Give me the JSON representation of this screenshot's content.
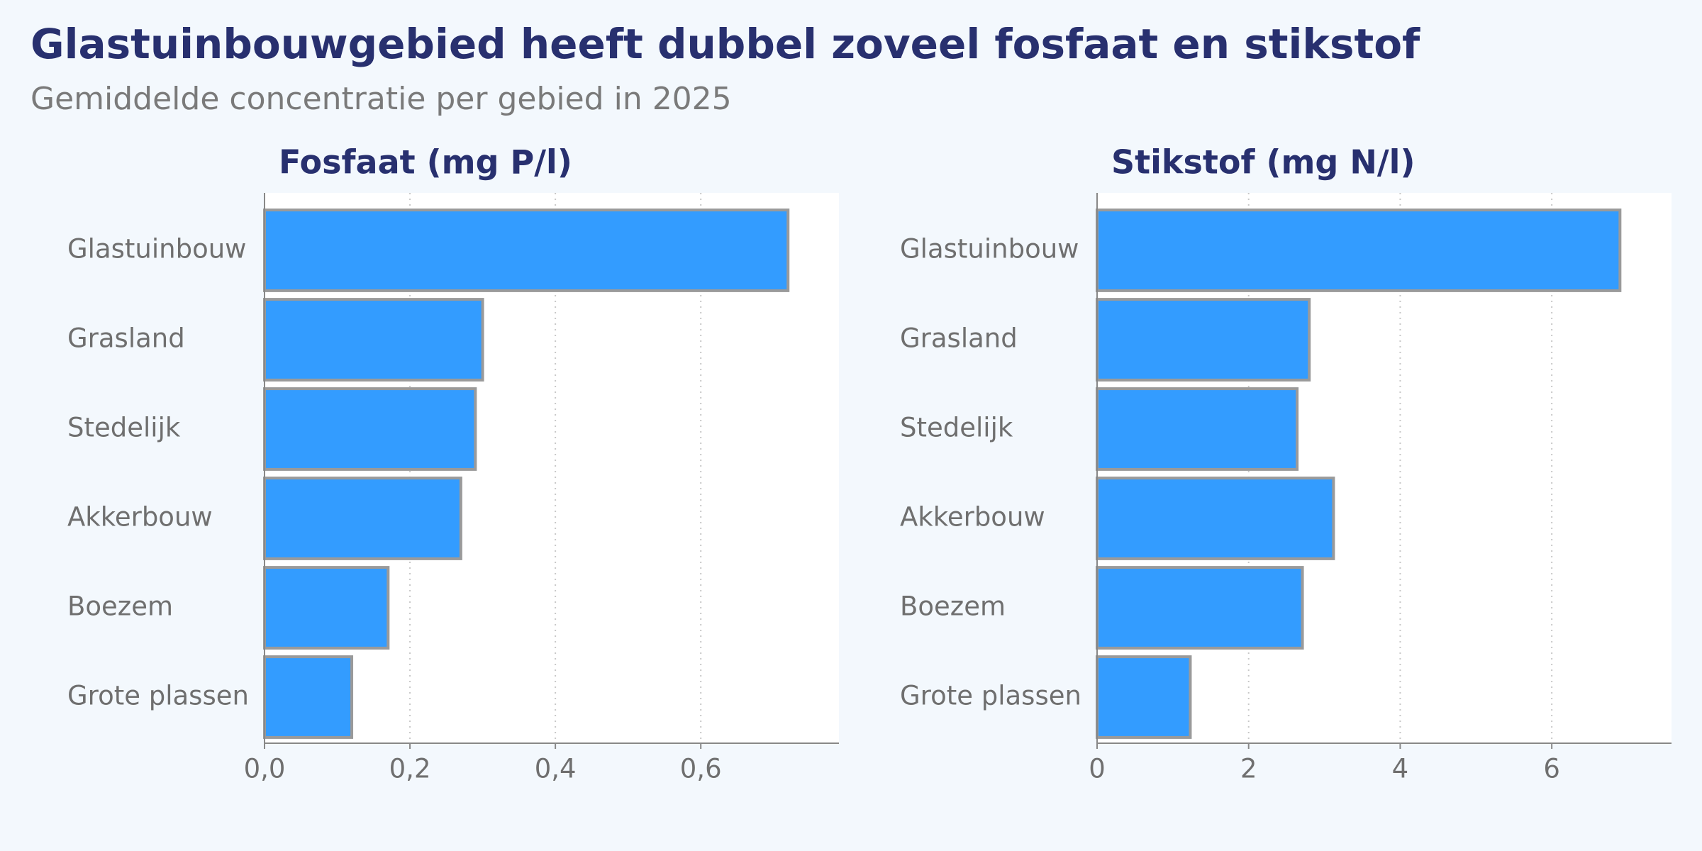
{
  "title": "Glastuinbouwgebied heeft dubbel zoveel fosfaat en stikstof",
  "subtitle": "Gemiddelde concentratie per gebied in 2025",
  "chart_data": [
    {
      "type": "hbar",
      "title": "Fosfaat (mg P/l)",
      "categories": [
        "Glastuinbouw",
        "Grasland",
        "Stedelijk",
        "Akkerbouw",
        "Boezem",
        "Grote plassen"
      ],
      "values": [
        0.72,
        0.3,
        0.29,
        0.27,
        0.17,
        0.12
      ],
      "color": "#339cff",
      "xlim": [
        0,
        0.79
      ],
      "xticks": [
        {
          "value": 0,
          "label": "0,0"
        },
        {
          "value": 0.2,
          "label": "0,2"
        },
        {
          "value": 0.4,
          "label": "0,4"
        },
        {
          "value": 0.6,
          "label": "0,6"
        }
      ],
      "grid": true
    },
    {
      "type": "hbar",
      "title": "Stikstof (mg N/l)",
      "categories": [
        "Glastuinbouw",
        "Grasland",
        "Stedelijk",
        "Akkerbouw",
        "Boezem",
        "Grote plassen"
      ],
      "values": [
        6.9,
        2.8,
        2.64,
        3.12,
        2.71,
        1.23
      ],
      "color": "#339cff",
      "xlim": [
        0,
        7.58
      ],
      "xticks": [
        0,
        2,
        4,
        6
      ],
      "grid": true
    }
  ]
}
